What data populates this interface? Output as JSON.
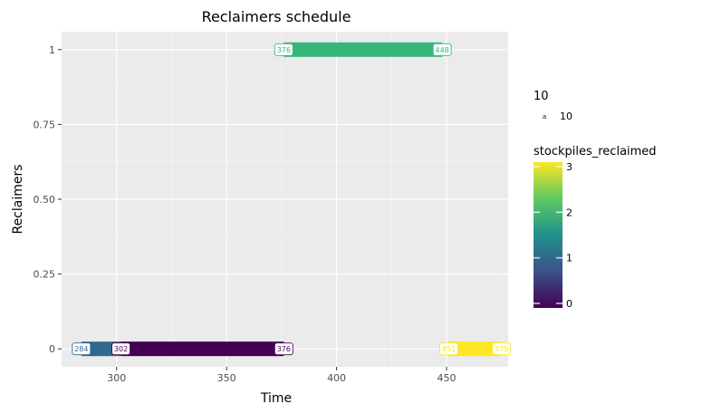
{
  "chart_data": {
    "type": "gantt",
    "title": "Reclaimers schedule",
    "xlabel": "Time",
    "ylabel": "Reclaimers",
    "xlim": [
      275,
      478
    ],
    "ylim": [
      -0.06,
      1.06
    ],
    "x_ticks": [
      300,
      350,
      400,
      450
    ],
    "y_ticks": [
      {
        "value": 1,
        "label": "1"
      },
      {
        "value": 0.75,
        "label": "0.75"
      },
      {
        "value": 0.5,
        "label": "0.50"
      },
      {
        "value": 0.25,
        "label": "0.25"
      },
      {
        "value": 0,
        "label": "0"
      }
    ],
    "segments": [
      {
        "reclaimer": 1,
        "start": 376,
        "end": 448,
        "stockpiles_reclaimed": 2,
        "color": "#35b779",
        "start_label": "376",
        "end_label": "448"
      },
      {
        "reclaimer": 0,
        "start": 284,
        "end": 302,
        "stockpiles_reclaimed": 1,
        "color": "#31688e",
        "start_label": "284",
        "end_label": "302"
      },
      {
        "reclaimer": 0,
        "start": 302,
        "end": 376,
        "stockpiles_reclaimed": 0,
        "color": "#440154",
        "start_label": "302",
        "end_label": "376"
      },
      {
        "reclaimer": 0,
        "start": 451,
        "end": 475,
        "stockpiles_reclaimed": 3,
        "color": "#fde725",
        "start_label": "451",
        "end_label": "475"
      }
    ],
    "legend": {
      "size_legend": {
        "title": "10",
        "key_symbol": "a",
        "label": "10"
      },
      "colorbar": {
        "title": "stockpiles_reclaimed",
        "min": 0,
        "max": 3,
        "ticks": [
          0,
          1,
          2,
          3
        ],
        "colors": [
          "#440154",
          "#31688e",
          "#21918c",
          "#35b779",
          "#fde725"
        ]
      }
    },
    "grid": true,
    "panel_background": "#ebebeb",
    "grid_color": "#ffffff"
  }
}
